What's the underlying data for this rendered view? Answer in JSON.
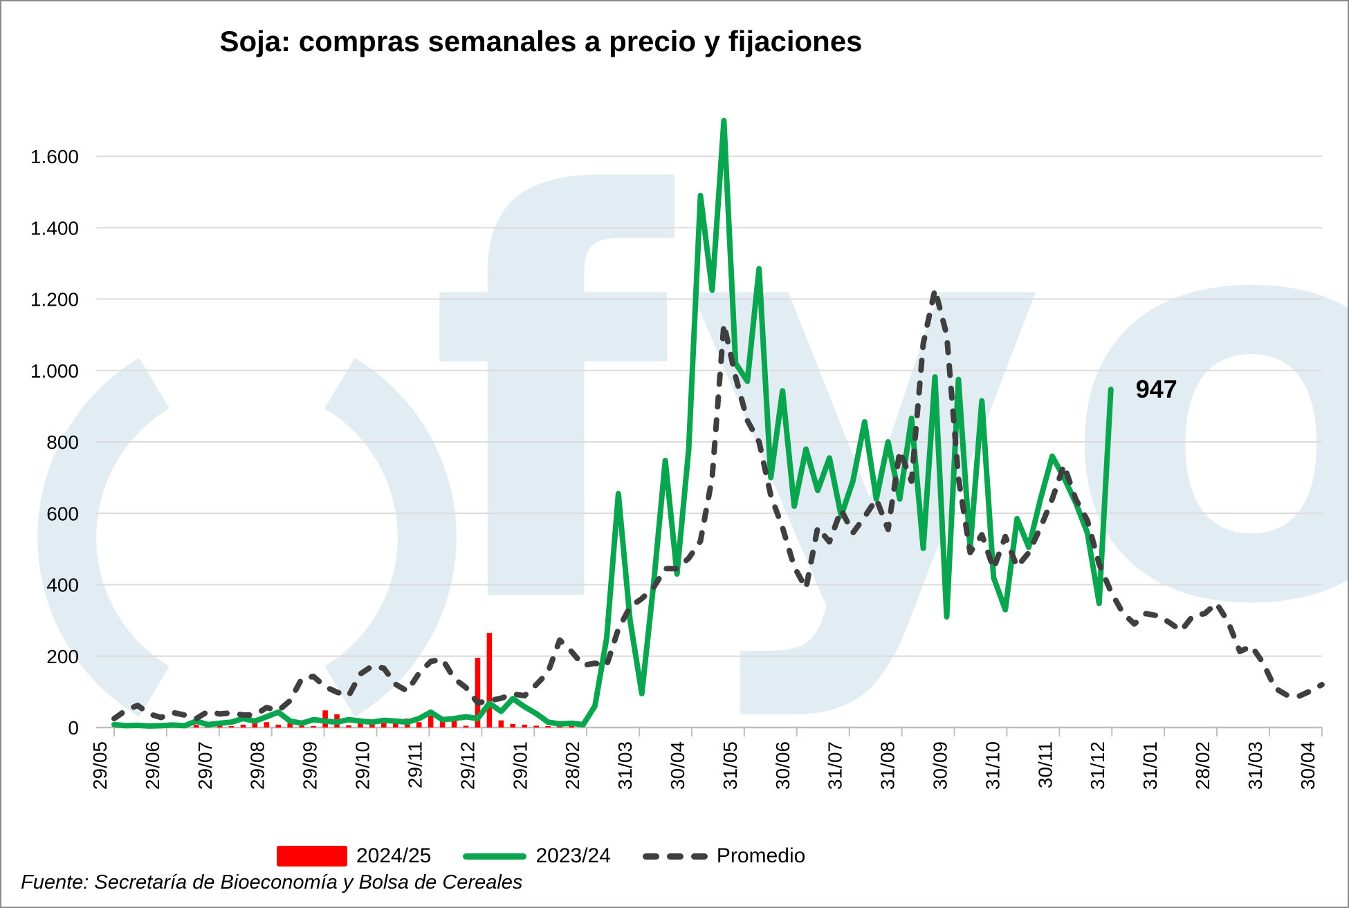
{
  "title": "Soja: compras semanales a precio y fijaciones",
  "source": "Fuente: Secretaría de Bioeconomía y Bolsa de Cereales",
  "watermark": {
    "text": "fyo"
  },
  "colors": {
    "bar_2024_25": "#FF0000",
    "line_2023_24": "#0AA64F",
    "promedio": "#3F3F3F",
    "gridline": "#DCDCDC",
    "axis": "#BFBFBF",
    "watermark": "#E2EDF3"
  },
  "legend": [
    {
      "label": "2024/25",
      "type": "bar"
    },
    {
      "label": "2023/24",
      "type": "line"
    },
    {
      "label": "Promedio",
      "type": "dashed-line"
    }
  ],
  "chart_data": {
    "type": "bar+line combo (weekly purchases, thousand tonnes)",
    "x_tick_labels": [
      "29/05",
      "29/06",
      "29/07",
      "29/08",
      "29/09",
      "29/10",
      "29/11",
      "29/12",
      "29/01",
      "28/02",
      "31/03",
      "30/04",
      "31/05",
      "30/06",
      "31/07",
      "31/08",
      "30/09",
      "31/10",
      "30/11",
      "31/12",
      "31/01",
      "28/02",
      "31/03",
      "30/04"
    ],
    "y_tick_values": [
      0,
      200,
      400,
      600,
      800,
      1000,
      1200,
      1400,
      1600
    ],
    "y_tick_labels": [
      "0",
      "200",
      "400",
      "600",
      "800",
      "1.000",
      "1.200",
      "1.400",
      "1.600"
    ],
    "ylim": [
      0,
      1750
    ],
    "n_weeks": 104,
    "grid": true,
    "legend_position": "bottom",
    "annotation": {
      "text": "947",
      "series": "2023/24",
      "week_index": 85
    },
    "series": [
      {
        "name": "2024/25",
        "type": "bar",
        "values": [
          0,
          0,
          3,
          2,
          4,
          3,
          2,
          8,
          3,
          5,
          4,
          8,
          15,
          15,
          8,
          12,
          5,
          4,
          48,
          37,
          6,
          18,
          15,
          12,
          20,
          25,
          15,
          33,
          18,
          25,
          5,
          195,
          265,
          20,
          10,
          8,
          5,
          4,
          3,
          3
        ]
      },
      {
        "name": "2023/24",
        "type": "line",
        "values": [
          8,
          5,
          6,
          4,
          5,
          7,
          5,
          18,
          8,
          12,
          15,
          25,
          18,
          30,
          43,
          18,
          12,
          22,
          18,
          15,
          22,
          18,
          15,
          20,
          18,
          15,
          25,
          43,
          22,
          25,
          30,
          25,
          68,
          45,
          81,
          58,
          39,
          15,
          10,
          12,
          8,
          60,
          250,
          655,
          300,
          95,
          400,
          748,
          430,
          780,
          1490,
          1225,
          1700,
          1020,
          970,
          1285,
          700,
          943,
          620,
          780,
          664,
          755,
          593,
          690,
          856,
          640,
          800,
          640,
          866,
          502,
          982,
          310,
          975,
          502,
          915,
          420,
          330,
          585,
          505,
          640,
          760,
          700,
          630,
          545,
          348,
          947
        ]
      },
      {
        "name": "Promedio",
        "type": "line",
        "dashed": true,
        "values": [
          25,
          48,
          62,
          38,
          28,
          42,
          35,
          25,
          45,
          38,
          41,
          35,
          35,
          56,
          47,
          75,
          137,
          143,
          114,
          99,
          89,
          150,
          172,
          166,
          121,
          102,
          152,
          185,
          191,
          137,
          112,
          69,
          75,
          82,
          94,
          89,
          120,
          155,
          245,
          213,
          174,
          180,
          174,
          276,
          338,
          361,
          392,
          445,
          445,
          474,
          522,
          700,
          1130,
          982,
          860,
          800,
          650,
          560,
          450,
          390,
          560,
          520,
          610,
          545,
          590,
          640,
          555,
          775,
          690,
          1075,
          1227,
          1100,
          700,
          490,
          540,
          445,
          535,
          450,
          490,
          560,
          640,
          735,
          640,
          580,
          458,
          381,
          322,
          290,
          319,
          313,
          294,
          271,
          313,
          319,
          348,
          296,
          213,
          228,
          180,
          110,
          91,
          87,
          102,
          120
        ]
      }
    ]
  }
}
